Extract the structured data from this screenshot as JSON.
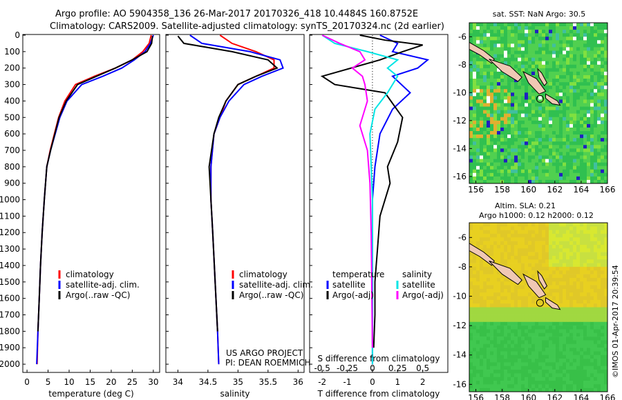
{
  "header": {
    "title_line1": "Argo profile: AO 5904358_136 26-Mar-2017 20170326_418 10.4484S 160.8752E",
    "title_line2": "Climatology: CARS2009. Satellite-adjusted climatology: synTS_20170324.nc (2d earlier)"
  },
  "colors": {
    "climatology": "#ff0000",
    "satellite": "#0000ff",
    "argo": "#000000",
    "salinity_satellite": "#00e5e5",
    "salinity_argo": "#ff00ff",
    "land": "#f0c8b4"
  },
  "credits": {
    "project": "US ARGO PROJECT",
    "pi": "PI: DEAN ROEMMICH",
    "imos": "©IMOS 01-Apr-2017 20:39:54"
  },
  "chart_data": [
    {
      "type": "line",
      "panel": "temperature",
      "xlabel": "temperature (deg C)",
      "ylabel": "",
      "xlim": [
        -1,
        31.5
      ],
      "ylim": [
        2050,
        0
      ],
      "xticks": [
        0,
        5,
        10,
        15,
        20,
        25,
        30
      ],
      "yticks": [
        0,
        100,
        200,
        300,
        400,
        500,
        600,
        700,
        800,
        900,
        1000,
        1100,
        1200,
        1300,
        1400,
        1500,
        1600,
        1700,
        1800,
        1900,
        2000
      ],
      "legend": [
        "climatology",
        "satellite-adj. clim.",
        "Argo(..raw -QC)"
      ],
      "series": [
        {
          "name": "climatology",
          "color": "#ff0000",
          "x": [
            29.5,
            29.0,
            27.5,
            25.0,
            21.0,
            16.0,
            11.5,
            9.0,
            7.5,
            6.5,
            5.5,
            4.7,
            4.1,
            3.6,
            3.2,
            2.9,
            2.6,
            2.4
          ],
          "y": [
            0,
            50,
            100,
            150,
            200,
            250,
            300,
            400,
            500,
            600,
            700,
            800,
            1000,
            1200,
            1400,
            1600,
            1800,
            2000
          ]
        },
        {
          "name": "satellite-adj. clim.",
          "color": "#0000ff",
          "x": [
            30.0,
            29.3,
            28.0,
            25.5,
            22.5,
            18.0,
            13.0,
            9.5,
            7.8,
            6.7,
            5.6,
            4.7,
            4.1,
            3.6,
            3.2,
            2.9,
            2.6,
            2.3
          ],
          "y": [
            0,
            50,
            100,
            150,
            200,
            250,
            300,
            400,
            500,
            600,
            700,
            800,
            1000,
            1200,
            1400,
            1600,
            1800,
            2000
          ]
        },
        {
          "name": "Argo(..raw -QC)",
          "color": "#000000",
          "x": [
            29.8,
            29.6,
            28.5,
            25.0,
            21.0,
            16.5,
            12.0,
            9.3,
            7.6,
            6.6,
            5.6,
            4.7,
            4.1,
            3.6,
            3.2,
            2.9,
            2.6
          ],
          "y": [
            5,
            50,
            100,
            150,
            200,
            250,
            300,
            400,
            500,
            600,
            700,
            800,
            1000,
            1200,
            1400,
            1600,
            1800
          ]
        }
      ]
    },
    {
      "type": "line",
      "panel": "salinity",
      "xlabel": "salinity",
      "ylabel": "",
      "xlim": [
        33.8,
        36.1
      ],
      "ylim": [
        2050,
        0
      ],
      "xticks": [
        34,
        34.5,
        35,
        35.5,
        36
      ],
      "legend": [
        "climatology",
        "satellite-adj. clim.",
        "Argo(..raw -QC)"
      ],
      "series": [
        {
          "name": "climatology",
          "color": "#ff0000",
          "x": [
            34.7,
            34.9,
            35.3,
            35.6,
            35.6,
            35.3,
            35.0,
            34.8,
            34.7,
            34.6,
            34.55,
            34.55,
            34.58,
            34.62,
            34.66,
            34.68
          ],
          "y": [
            0,
            50,
            100,
            150,
            200,
            250,
            300,
            400,
            500,
            600,
            800,
            1000,
            1200,
            1500,
            1800,
            2000
          ]
        },
        {
          "name": "satellite-adj. clim.",
          "color": "#0000ff",
          "x": [
            34.2,
            34.4,
            35.2,
            35.7,
            35.75,
            35.4,
            35.1,
            34.85,
            34.7,
            34.6,
            34.55,
            34.55,
            34.58,
            34.62,
            34.66,
            34.68
          ],
          "y": [
            0,
            50,
            100,
            150,
            200,
            250,
            300,
            400,
            500,
            600,
            800,
            1000,
            1200,
            1500,
            1800,
            2000
          ]
        },
        {
          "name": "Argo(..raw -QC)",
          "color": "#000000",
          "x": [
            34.0,
            34.1,
            34.9,
            35.5,
            35.65,
            35.3,
            35.0,
            34.8,
            34.68,
            34.6,
            34.52,
            34.55,
            34.58,
            34.62,
            34.66
          ],
          "y": [
            5,
            50,
            100,
            150,
            200,
            250,
            300,
            400,
            500,
            600,
            800,
            1000,
            1200,
            1500,
            1800
          ]
        }
      ]
    },
    {
      "type": "line",
      "panel": "difference",
      "xlabel": "T difference from climatology",
      "xlabel2": "S difference from climatology",
      "xlim": [
        -2.5,
        3.0
      ],
      "ylim": [
        2050,
        0
      ],
      "xticks": [
        -2,
        -1,
        0,
        1,
        2
      ],
      "xticks_s": [
        "-0.5",
        "-0.25",
        "0",
        "0.25",
        "0.5"
      ],
      "xticks_s_pos": [
        -2,
        -1,
        0,
        1,
        2
      ],
      "legend_temperature": "temperature",
      "legend_salinity": "salinity",
      "legend": [
        "satellite",
        "Argo(-adj)",
        "satellite",
        "Argo(-adj)"
      ],
      "series": [
        {
          "name": "satellite",
          "color": "#0000ff",
          "x": [
            0.3,
            1.0,
            0.8,
            2.2,
            1.8,
            0.8,
            1.5,
            0.8,
            0.3,
            0.1,
            0.0,
            0.0,
            0.0,
            0.0
          ],
          "y": [
            0,
            50,
            100,
            150,
            200,
            250,
            350,
            450,
            600,
            800,
            1000,
            1300,
            1600,
            2000
          ]
        },
        {
          "name": "Argo(-adj)",
          "color": "#000000",
          "x": [
            -0.5,
            0.5,
            2.0,
            1.2,
            0.3,
            -2.0,
            -1.5,
            0.5,
            1.2,
            1.0,
            0.6,
            0.7,
            0.3,
            0.2,
            0.1,
            0.1,
            0.05
          ],
          "y": [
            0,
            30,
            60,
            100,
            150,
            250,
            300,
            350,
            500,
            650,
            800,
            900,
            1100,
            1300,
            1500,
            1700,
            1900
          ]
        },
        {
          "name": "satellite",
          "color": "#00e5e5",
          "x": [
            -2.0,
            -1.5,
            -0.2,
            1.0,
            0.6,
            1.0,
            0.6,
            0.1,
            -0.1,
            -0.05,
            0.0,
            0.0,
            0.0
          ],
          "y": [
            0,
            50,
            100,
            150,
            200,
            250,
            350,
            450,
            600,
            800,
            1000,
            1400,
            2000
          ]
        },
        {
          "name": "Argo(-adj)",
          "color": "#ff00ff",
          "x": [
            -2.0,
            -1.3,
            -0.5,
            -0.3,
            -0.8,
            -0.4,
            -0.3,
            -0.2,
            -0.5,
            -0.2,
            -0.1,
            -0.05,
            0.0
          ],
          "y": [
            0,
            50,
            100,
            150,
            200,
            250,
            300,
            400,
            550,
            700,
            900,
            1200,
            1900
          ]
        }
      ]
    },
    {
      "type": "heatmap",
      "panel": "sst-map",
      "title": "sat. SST: NaN Argo: 30.5",
      "xlim": [
        155.5,
        166
      ],
      "ylim": [
        -16.5,
        -5
      ],
      "xticks": [
        156,
        158,
        160,
        162,
        164,
        166
      ],
      "yticks": [
        -6,
        -8,
        -10,
        -12,
        -14,
        -16
      ],
      "argo_position": {
        "lon": 160.8752,
        "lat": -10.4484
      }
    },
    {
      "type": "heatmap",
      "panel": "sla-map",
      "title": "Altim. SLA: 0.21",
      "subtitle": "Argo h1000: 0.12 h2000: 0.12",
      "xlim": [
        155.5,
        166
      ],
      "ylim": [
        -16.5,
        -5
      ],
      "xticks": [
        156,
        158,
        160,
        162,
        164,
        166
      ],
      "yticks": [
        -6,
        -8,
        -10,
        -12,
        -14,
        -16
      ],
      "argo_position": {
        "lon": 160.8752,
        "lat": -10.4484
      }
    }
  ]
}
